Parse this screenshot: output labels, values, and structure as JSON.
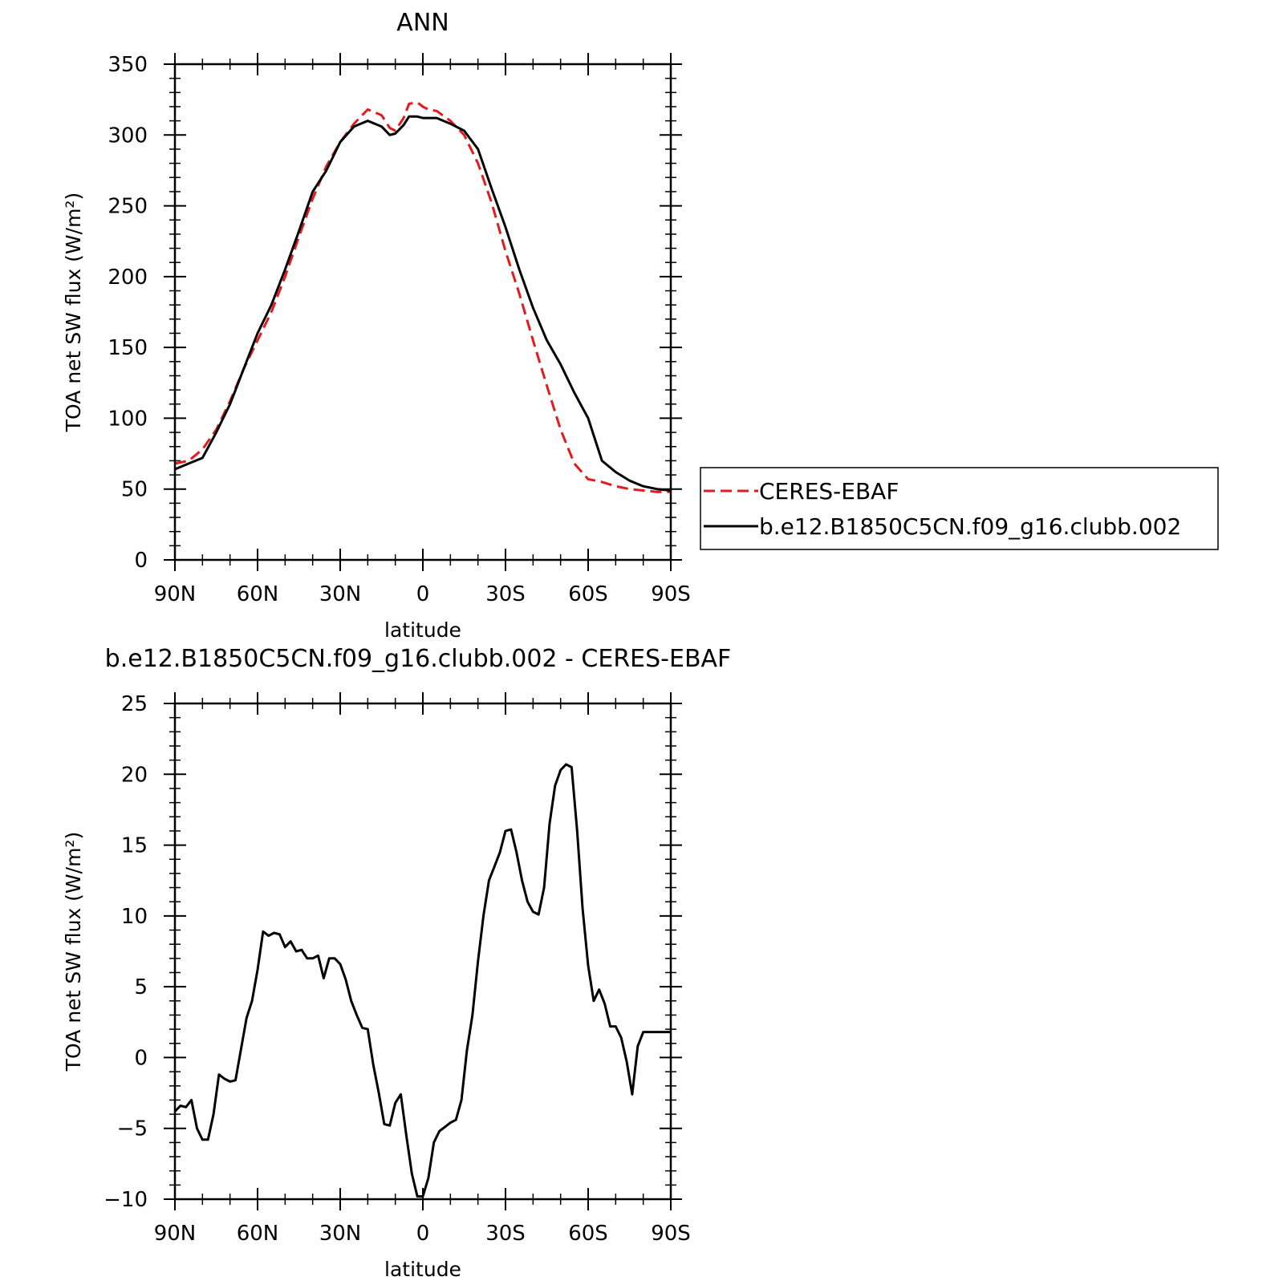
{
  "chart_data": [
    {
      "type": "line",
      "title": "ANN",
      "xlabel": "latitude",
      "ylabel": "TOA net SW flux (W/m²)",
      "ylim": [
        0,
        350
      ],
      "xlim": [
        -90,
        90
      ],
      "x_ticks": [
        -90,
        -60,
        -30,
        0,
        30,
        60,
        90
      ],
      "x_tick_labels": [
        "90N",
        "60N",
        "30N",
        "0",
        "30S",
        "60S",
        "90S"
      ],
      "y_ticks": [
        0,
        50,
        100,
        150,
        200,
        250,
        300,
        350
      ],
      "y_tick_labels": [
        "0",
        "50",
        "100",
        "150",
        "200",
        "250",
        "300",
        "350"
      ],
      "grid": false,
      "legend_position": "right",
      "series": [
        {
          "name": "CERES-EBAF",
          "color": "#e41a1c",
          "dash": "dashed",
          "x": [
            -90,
            -85,
            -80,
            -75,
            -70,
            -65,
            -60,
            -55,
            -50,
            -45,
            -40,
            -35,
            -30,
            -25,
            -20,
            -15,
            -12,
            -10,
            -7,
            -5,
            -2,
            0,
            2,
            5,
            10,
            15,
            20,
            25,
            30,
            35,
            40,
            45,
            50,
            55,
            60,
            65,
            70,
            75,
            80,
            85,
            90
          ],
          "y": [
            68,
            70,
            78,
            92,
            112,
            135,
            155,
            175,
            200,
            228,
            255,
            278,
            295,
            308,
            318,
            314,
            305,
            303,
            312,
            322,
            323,
            320,
            318,
            317,
            310,
            300,
            280,
            252,
            218,
            188,
            155,
            123,
            92,
            68,
            57,
            55,
            52,
            50,
            49,
            48,
            48
          ]
        },
        {
          "name": "b.e12.B1850C5CN.f09_g16.clubb.002",
          "color": "#000000",
          "dash": "solid",
          "x": [
            -90,
            -85,
            -80,
            -75,
            -70,
            -65,
            -60,
            -55,
            -50,
            -45,
            -40,
            -35,
            -30,
            -25,
            -20,
            -15,
            -12,
            -10,
            -7,
            -5,
            -2,
            0,
            2,
            5,
            10,
            15,
            20,
            25,
            30,
            35,
            40,
            45,
            50,
            55,
            60,
            65,
            70,
            75,
            80,
            85,
            90
          ],
          "y": [
            64,
            68,
            72,
            90,
            110,
            135,
            160,
            180,
            205,
            232,
            260,
            275,
            295,
            306,
            310,
            306,
            300,
            301,
            307,
            313,
            313,
            312,
            312,
            312,
            308,
            303,
            290,
            262,
            235,
            205,
            178,
            155,
            138,
            118,
            100,
            70,
            62,
            56,
            52,
            50,
            49
          ]
        }
      ]
    },
    {
      "type": "line",
      "title": "b.e12.B1850C5CN.f09_g16.clubb.002 - CERES-EBAF",
      "xlabel": "latitude",
      "ylabel": "TOA net SW flux (W/m²)",
      "ylim": [
        -10,
        25
      ],
      "xlim": [
        -90,
        90
      ],
      "x_ticks": [
        -90,
        -60,
        -30,
        0,
        30,
        60,
        90
      ],
      "x_tick_labels": [
        "90N",
        "60N",
        "30N",
        "0",
        "30S",
        "60S",
        "90S"
      ],
      "y_ticks": [
        -10,
        -5,
        0,
        5,
        10,
        15,
        20,
        25
      ],
      "y_tick_labels": [
        "−10",
        "−5",
        "0",
        "5",
        "10",
        "15",
        "20",
        "25"
      ],
      "grid": false,
      "series": [
        {
          "name": "",
          "color": "#000000",
          "dash": "solid",
          "x": [
            -90,
            -88,
            -86,
            -84,
            -82,
            -80,
            -78,
            -76,
            -74,
            -72,
            -70,
            -68,
            -66,
            -64,
            -62,
            -60,
            -58,
            -56,
            -54,
            -52,
            -50,
            -48,
            -46,
            -44,
            -42,
            -40,
            -38,
            -36,
            -34,
            -32,
            -30,
            -28,
            -26,
            -24,
            -22,
            -20,
            -18,
            -16,
            -14,
            -12,
            -10,
            -8,
            -6,
            -4,
            -2,
            0,
            2,
            4,
            6,
            8,
            10,
            12,
            14,
            16,
            18,
            20,
            22,
            24,
            26,
            28,
            30,
            32,
            34,
            36,
            38,
            40,
            42,
            44,
            46,
            48,
            50,
            52,
            54,
            56,
            58,
            60,
            62,
            64,
            66,
            68,
            70,
            72,
            74,
            76,
            78,
            80,
            82,
            84,
            86,
            88,
            90
          ],
          "y": [
            -3.8,
            -3.4,
            -3.5,
            -3.0,
            -5.0,
            -5.8,
            -5.8,
            -4.0,
            -1.2,
            -1.5,
            -1.7,
            -1.6,
            0.6,
            2.8,
            4.0,
            6.2,
            8.9,
            8.6,
            8.8,
            8.7,
            7.8,
            8.2,
            7.5,
            7.6,
            7.0,
            7.0,
            7.2,
            5.6,
            7.0,
            7.0,
            6.6,
            5.5,
            4.0,
            3.0,
            2.1,
            2.0,
            -0.5,
            -2.5,
            -4.7,
            -4.8,
            -3.2,
            -2.6,
            -5.5,
            -8.2,
            -9.8,
            -9.8,
            -8.5,
            -6.0,
            -5.2,
            -4.9,
            -4.6,
            -4.4,
            -3.0,
            0.5,
            3.0,
            6.8,
            10.0,
            12.5,
            13.5,
            14.5,
            16.0,
            16.1,
            14.5,
            12.5,
            11.0,
            10.3,
            10.1,
            12.0,
            16.5,
            19.2,
            20.3,
            20.7,
            20.5,
            16.0,
            10.5,
            6.5,
            4.0,
            4.8,
            3.8,
            2.2,
            2.2,
            1.4,
            -0.3,
            -2.6,
            0.8,
            1.8,
            1.8,
            1.8,
            1.8,
            1.8,
            1.8
          ]
        }
      ]
    }
  ]
}
